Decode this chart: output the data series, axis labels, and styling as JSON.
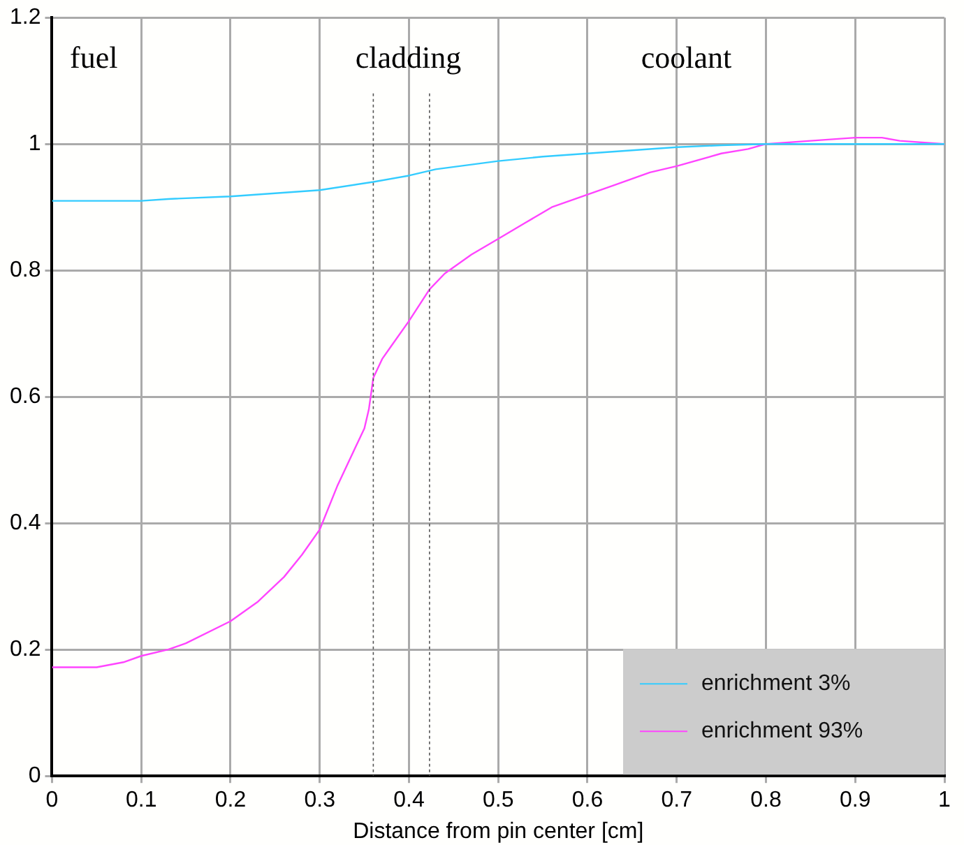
{
  "chart_data": {
    "type": "line",
    "xlabel": "Distance from pin center [cm]",
    "xlim": [
      0,
      1
    ],
    "xticks": [
      0,
      0.1,
      0.2,
      0.3,
      0.4,
      0.5,
      0.6,
      0.7,
      0.8,
      0.9,
      1
    ],
    "ylim": [
      0,
      1.2
    ],
    "yticks": [
      0,
      0.2,
      0.4,
      0.6,
      0.8,
      1,
      1.2
    ],
    "grid": true,
    "legend": "bottom right",
    "marker": "none",
    "line_style": "solid",
    "ref_lines": [
      {
        "axis": "x",
        "value": 0.36,
        "color": "#555555",
        "line_style": "dotted"
      },
      {
        "axis": "x",
        "value": 0.423,
        "color": "#555555",
        "line_style": "dotted"
      }
    ],
    "annotations": [
      "fuel",
      "cladding",
      "coolant"
    ],
    "series": [
      {
        "name": "enrichment 3%",
        "color": "#33ccff",
        "x": [
          0,
          0.1,
          0.13,
          0.2,
          0.3,
          0.36,
          0.4,
          0.43,
          0.5,
          0.55,
          0.6,
          0.7,
          0.75,
          0.8,
          0.9,
          1
        ],
        "values": [
          0.91,
          0.91,
          0.913,
          0.917,
          0.927,
          0.94,
          0.95,
          0.96,
          0.973,
          0.98,
          0.985,
          0.995,
          0.998,
          1.0,
          1.0,
          1.0
        ]
      },
      {
        "name": "enrichment 93%",
        "color": "#ff44ff",
        "x": [
          0,
          0.05,
          0.08,
          0.1,
          0.13,
          0.15,
          0.2,
          0.23,
          0.26,
          0.28,
          0.3,
          0.32,
          0.34,
          0.35,
          0.355,
          0.36,
          0.37,
          0.38,
          0.4,
          0.423,
          0.44,
          0.47,
          0.5,
          0.53,
          0.56,
          0.6,
          0.63,
          0.67,
          0.7,
          0.75,
          0.78,
          0.8,
          0.85,
          0.9,
          0.93,
          0.95,
          1
        ],
        "values": [
          0.172,
          0.172,
          0.18,
          0.19,
          0.2,
          0.21,
          0.245,
          0.275,
          0.315,
          0.35,
          0.39,
          0.46,
          0.52,
          0.55,
          0.58,
          0.63,
          0.66,
          0.68,
          0.72,
          0.77,
          0.795,
          0.825,
          0.85,
          0.875,
          0.9,
          0.92,
          0.935,
          0.955,
          0.965,
          0.985,
          0.992,
          1.0,
          1.005,
          1.01,
          1.01,
          1.005,
          1.0
        ]
      }
    ]
  }
}
